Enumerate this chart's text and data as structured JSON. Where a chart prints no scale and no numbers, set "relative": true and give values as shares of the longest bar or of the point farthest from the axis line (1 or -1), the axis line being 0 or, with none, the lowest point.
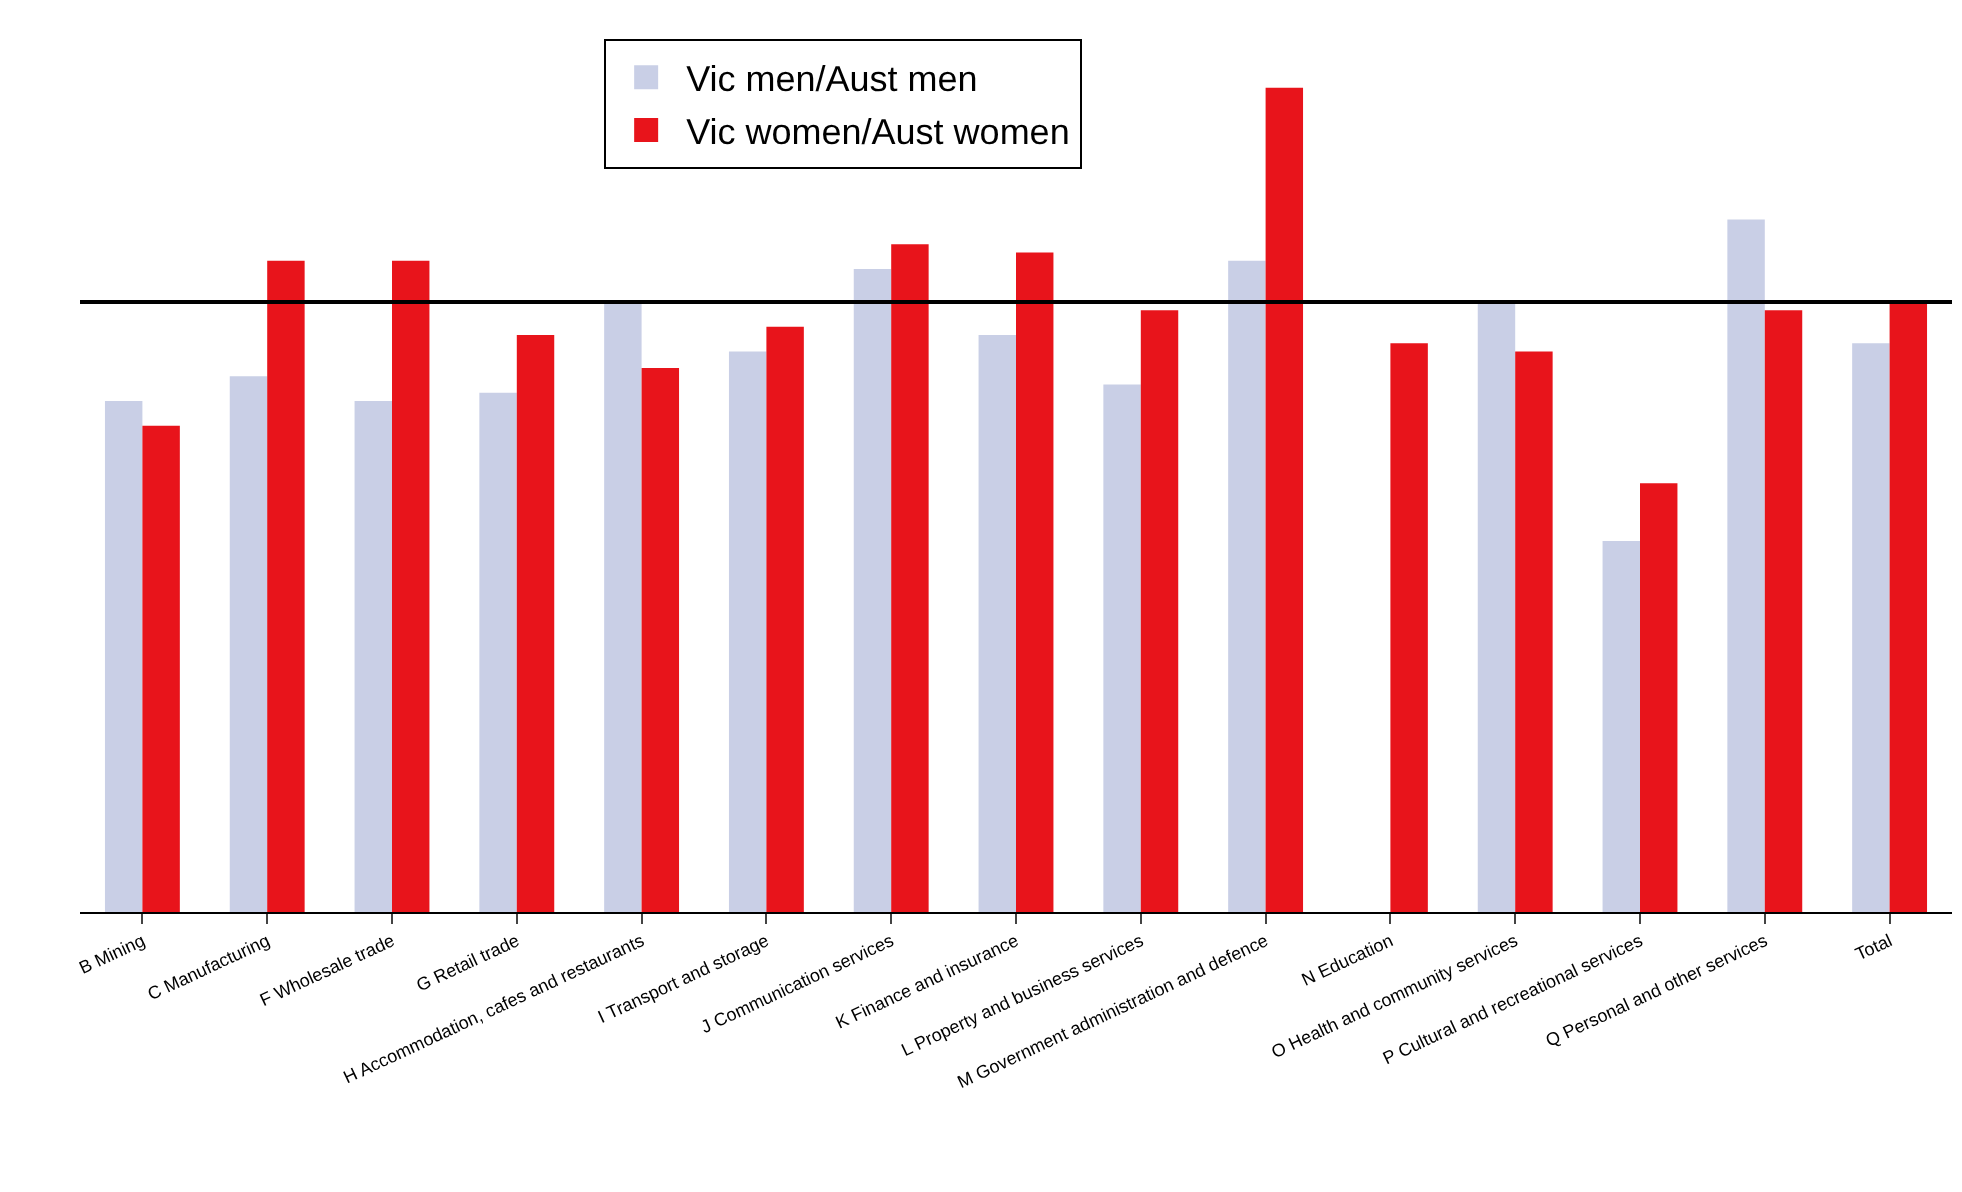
{
  "chart_data": {
    "type": "bar",
    "relative": true,
    "legend": "top",
    "categories": [
      "B Mining",
      "C Manufacturing",
      "F Wholesale trade",
      "G Retail trade",
      "H Accommodation, cafes and restaurants",
      "I Transport and storage",
      "J Communication services",
      "K Finance and insurance",
      "L Property and business services",
      "M Government administration and defence",
      "N Education",
      "O Health and community services",
      "P Cultural and recreational services",
      "Q Personal and other services",
      "Total"
    ],
    "series": [
      {
        "name": "Vic men/Aust men",
        "color": "#c9cfe6",
        "values": [
          0.62,
          0.65,
          0.62,
          0.63,
          0.74,
          0.68,
          0.78,
          0.7,
          0.64,
          0.79,
          null,
          0.74,
          0.45,
          0.84,
          0.69
        ]
      },
      {
        "name": "Vic women/Aust women",
        "color": "#e8141b",
        "values": [
          0.59,
          0.79,
          0.79,
          0.7,
          0.66,
          0.71,
          0.81,
          0.8,
          0.73,
          1,
          0.69,
          0.68,
          0.52,
          0.73,
          0.74
        ]
      }
    ],
    "ref_lines": [
      {
        "axis": "y",
        "value": 0.74,
        "color": "#000000",
        "line_style": "solid"
      }
    ]
  }
}
